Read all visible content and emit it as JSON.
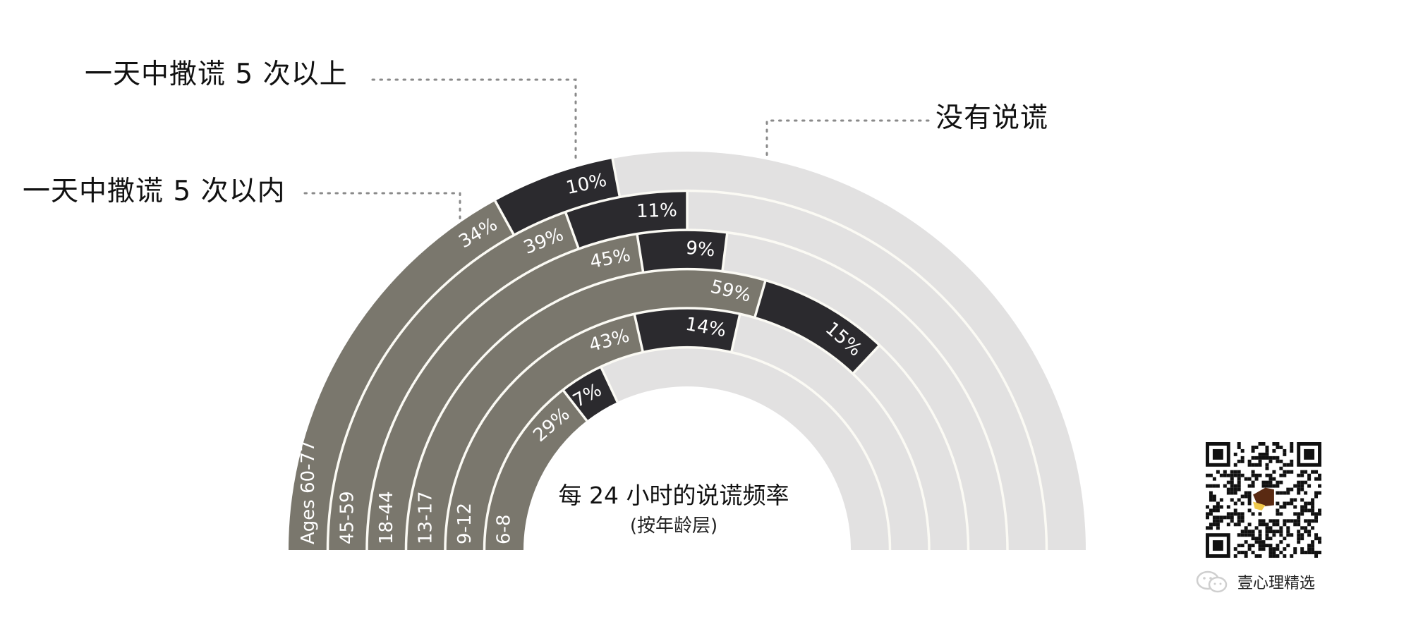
{
  "legend": {
    "over5": "一天中撒谎 5 次以上",
    "under5": "一天中撒谎 5 次以内",
    "none": "没有说谎"
  },
  "title": "每 24 小时的说谎频率",
  "subtitle": "(按年龄层)",
  "watermark": {
    "account_name": "壹心理精选",
    "icon": "wechat-icon",
    "qr": "qr-code"
  },
  "colors": {
    "under5": "#7a776d",
    "over5": "#2b2a2e",
    "none": "#e2e1e1",
    "separator": "#fbfaf4",
    "leader": "#8a8a8a",
    "text_on_ring": "#ffffff"
  },
  "chart_data": {
    "type": "radial-stacked-bar",
    "title": "每 24 小时的说谎频率",
    "subtitle": "(按年龄层)",
    "sweep_degrees": 180,
    "categories": [
      "Ages 60-77",
      "45-59",
      "18-44",
      "13-17",
      "9-12",
      "6-8"
    ],
    "category_order": "outer-to-inner",
    "series": [
      {
        "name": "一天中撒谎 5 次以内",
        "key": "under5",
        "values": [
          34,
          39,
          45,
          59,
          43,
          29
        ]
      },
      {
        "name": "一天中撒谎 5 次以上",
        "key": "over5",
        "values": [
          10,
          11,
          9,
          15,
          14,
          7
        ]
      },
      {
        "name": "没有说谎",
        "key": "none",
        "values": [
          56,
          50,
          46,
          26,
          43,
          64
        ]
      }
    ],
    "value_labels": {
      "under5": [
        "34%",
        "39%",
        "45%",
        "59%",
        "43%",
        "29%"
      ],
      "over5": [
        "10%",
        "11%",
        "9%",
        "15%",
        "14%",
        "7%"
      ]
    },
    "unit": "%",
    "legend_position": "annotated-leaders"
  }
}
